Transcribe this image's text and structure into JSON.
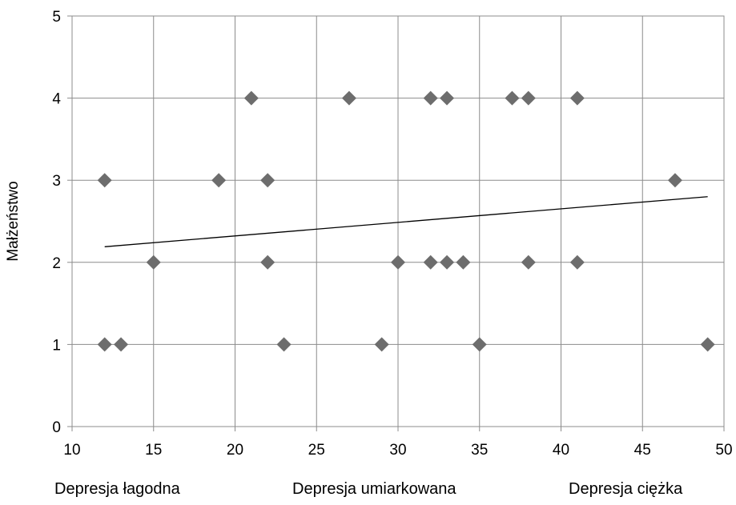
{
  "chart_data": {
    "type": "scatter",
    "title": "",
    "xlabel": "",
    "ylabel": "Małżeństwo",
    "xlim": [
      10,
      50
    ],
    "ylim": [
      0,
      5
    ],
    "x_ticks": [
      "10",
      "15",
      "20",
      "25",
      "30",
      "35",
      "40",
      "45",
      "50"
    ],
    "y_ticks": [
      "0",
      "1",
      "2",
      "3",
      "4",
      "5"
    ],
    "grid": true,
    "legend": "none",
    "marker": "diamond",
    "marker_color": "#6d6d6d",
    "trendline_color": "#000000",
    "series": [
      {
        "points": [
          {
            "x": 12,
            "y": 3
          },
          {
            "x": 12,
            "y": 1
          },
          {
            "x": 13,
            "y": 1
          },
          {
            "x": 15,
            "y": 2
          },
          {
            "x": 19,
            "y": 3
          },
          {
            "x": 21,
            "y": 4
          },
          {
            "x": 22,
            "y": 3
          },
          {
            "x": 22,
            "y": 2
          },
          {
            "x": 23,
            "y": 1
          },
          {
            "x": 27,
            "y": 4
          },
          {
            "x": 29,
            "y": 1
          },
          {
            "x": 30,
            "y": 2
          },
          {
            "x": 32,
            "y": 4
          },
          {
            "x": 32,
            "y": 2
          },
          {
            "x": 33,
            "y": 4
          },
          {
            "x": 33,
            "y": 2
          },
          {
            "x": 34,
            "y": 2
          },
          {
            "x": 35,
            "y": 1
          },
          {
            "x": 37,
            "y": 4
          },
          {
            "x": 38,
            "y": 4
          },
          {
            "x": 38,
            "y": 2
          },
          {
            "x": 41,
            "y": 4
          },
          {
            "x": 41,
            "y": 2
          },
          {
            "x": 47,
            "y": 3
          },
          {
            "x": 49,
            "y": 1
          }
        ]
      }
    ],
    "trendline": {
      "x": [
        12,
        49
      ],
      "y": [
        2.19,
        2.8
      ]
    },
    "categories": [
      "Depresja łagodna",
      "Depresja umiarkowana",
      "Depresja ciężka"
    ]
  }
}
